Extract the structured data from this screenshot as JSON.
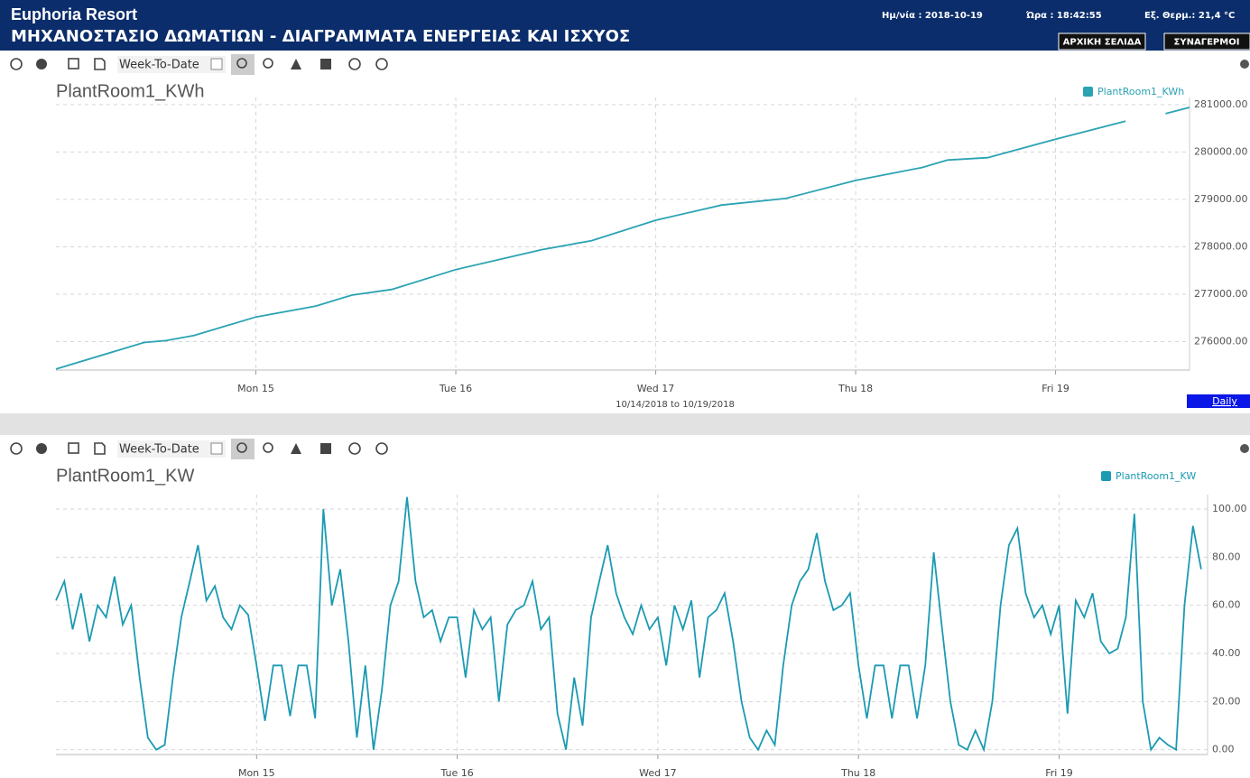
{
  "header": {
    "title": "Euphoria Resort",
    "subtitle": "ΜΗΧΑΝΟΣΤΑΣΙΟ ΔΩΜΑΤΙΩΝ - ΔΙΑΓΡΑΜΜΑΤΑ ΕΝΕΡΓΕΙΑΣ ΚΑΙ ΙΣΧΥΟΣ",
    "date": "Ημ/νία : 2018-10-19",
    "time": "Ώρα :  18:42:55",
    "temperature": "Εξ. Θερμ.:  21,4 °C",
    "buttons": [
      "ΑΡΧΙΚΗ ΣΕΛΙΔΑ",
      "ΣΥΝΑΓΕΡΜΟΙ"
    ]
  },
  "toolbars": [
    {
      "range": "Week-To-Date"
    },
    {
      "range": "Week-To-Date"
    }
  ],
  "chart_data": [
    {
      "type": "line",
      "title": "PlantRoom1_KWh",
      "subtitle": "10/14/2018 to 10/19/2018",
      "range_button": "Daily",
      "legend": "top-right",
      "grid": true,
      "x": [
        14,
        14.44,
        14.55,
        14.69,
        15,
        15.3,
        15.48,
        15.68,
        16,
        16.43,
        16.68,
        17,
        17.33,
        17.65,
        18,
        18.33,
        18.46,
        18.66,
        19,
        19.35,
        19.44,
        19.55,
        19.67
      ],
      "series": [
        {
          "name": "PlantRoom1_KWh",
          "color": "#2aa3b3",
          "values": [
            275420,
            275980,
            276020,
            276130,
            276520,
            276750,
            276980,
            277100,
            277520,
            277940,
            278130,
            278560,
            278880,
            279020,
            279400,
            279670,
            279830,
            279880,
            280270,
            280650,
            null,
            280810,
            280940
          ]
        }
      ],
      "xlim": [
        14,
        19.67
      ],
      "xticks": [
        {
          "value": 15,
          "label": "Mon 15"
        },
        {
          "value": 16,
          "label": "Tue 16"
        },
        {
          "value": 17,
          "label": "Wed 17"
        },
        {
          "value": 18,
          "label": "Thu 18"
        },
        {
          "value": 19,
          "label": "Fri 19"
        }
      ],
      "ylim": [
        275400,
        281150
      ],
      "yticks": [
        {
          "value": 276000,
          "label": "276000.00"
        },
        {
          "value": 277000,
          "label": "277000.00"
        },
        {
          "value": 278000,
          "label": "278000.00"
        },
        {
          "value": 279000,
          "label": "279000.00"
        },
        {
          "value": 280000,
          "label": "280000.00"
        },
        {
          "value": 281000,
          "label": "281000.00"
        }
      ]
    },
    {
      "type": "line",
      "title": "PlantRoom1_KW",
      "legend": "top-right",
      "grid": true,
      "x": [
        14,
        14.042,
        14.083,
        14.125,
        14.167,
        14.208,
        14.25,
        14.292,
        14.333,
        14.375,
        14.417,
        14.458,
        14.5,
        14.542,
        14.583,
        14.625,
        14.667,
        14.708,
        14.75,
        14.792,
        14.833,
        14.875,
        14.917,
        14.958,
        15,
        15.042,
        15.083,
        15.125,
        15.167,
        15.208,
        15.25,
        15.292,
        15.333,
        15.375,
        15.417,
        15.458,
        15.5,
        15.542,
        15.583,
        15.625,
        15.667,
        15.708,
        15.75,
        15.792,
        15.833,
        15.875,
        15.917,
        15.958,
        16,
        16.042,
        16.083,
        16.125,
        16.167,
        16.208,
        16.25,
        16.292,
        16.333,
        16.375,
        16.417,
        16.458,
        16.5,
        16.542,
        16.583,
        16.625,
        16.667,
        16.708,
        16.75,
        16.792,
        16.833,
        16.875,
        16.917,
        16.958,
        17,
        17.042,
        17.083,
        17.125,
        17.167,
        17.208,
        17.25,
        17.292,
        17.333,
        17.375,
        17.417,
        17.458,
        17.5,
        17.542,
        17.583,
        17.625,
        17.667,
        17.708,
        17.75,
        17.792,
        17.833,
        17.875,
        17.917,
        17.958,
        18,
        18.042,
        18.083,
        18.125,
        18.167,
        18.208,
        18.25,
        18.292,
        18.333,
        18.375,
        18.417,
        18.458,
        18.5,
        18.542,
        18.583,
        18.625,
        18.667,
        18.708,
        18.75,
        18.792,
        18.833,
        18.875,
        18.917,
        18.958,
        19,
        19.042,
        19.083,
        19.125,
        19.167,
        19.208,
        19.25,
        19.292,
        19.333,
        19.375,
        19.417,
        19.458,
        19.5,
        19.542,
        19.583,
        19.625,
        19.667,
        19.708
      ],
      "series": [
        {
          "name": "PlantRoom1_KW",
          "color": "#1b9ab2",
          "values": [
            62,
            70,
            50,
            65,
            45,
            60,
            55,
            72,
            52,
            60,
            30,
            5,
            0,
            2,
            30,
            55,
            70,
            85,
            62,
            68,
            55,
            50,
            60,
            56,
            35,
            12,
            35,
            35,
            14,
            35,
            35,
            13,
            100,
            60,
            75,
            45,
            5,
            35,
            0,
            25,
            60,
            70,
            105,
            70,
            55,
            58,
            45,
            55,
            55,
            30,
            58,
            50,
            55,
            20,
            52,
            58,
            60,
            70,
            50,
            55,
            15,
            0,
            30,
            10,
            55,
            70,
            85,
            65,
            55,
            48,
            60,
            50,
            55,
            35,
            60,
            50,
            62,
            30,
            55,
            58,
            65,
            45,
            20,
            5,
            0,
            8,
            2,
            35,
            60,
            70,
            75,
            90,
            70,
            58,
            60,
            65,
            35,
            13,
            35,
            35,
            13,
            35,
            35,
            13,
            35,
            82,
            50,
            20,
            2,
            0,
            8,
            0,
            20,
            60,
            85,
            92,
            65,
            55,
            60,
            48,
            60,
            15,
            62,
            55,
            65,
            45,
            40,
            42,
            55,
            98,
            20,
            0,
            5,
            2,
            0,
            60,
            93,
            75
          ]
        }
      ],
      "xlim": [
        14,
        19.74
      ],
      "xticks": [
        {
          "value": 15,
          "label": "Mon 15"
        },
        {
          "value": 16,
          "label": "Tue 16"
        },
        {
          "value": 17,
          "label": "Wed 17"
        },
        {
          "value": 18,
          "label": "Thu 18"
        },
        {
          "value": 19,
          "label": "Fri 19"
        }
      ],
      "ylim": [
        -2,
        106
      ],
      "yticks": [
        {
          "value": 0,
          "label": "0.00"
        },
        {
          "value": 20,
          "label": "20.00"
        },
        {
          "value": 40,
          "label": "40.00"
        },
        {
          "value": 60,
          "label": "60.00"
        },
        {
          "value": 80,
          "label": "80.00"
        },
        {
          "value": 100,
          "label": "100.00"
        }
      ]
    }
  ]
}
